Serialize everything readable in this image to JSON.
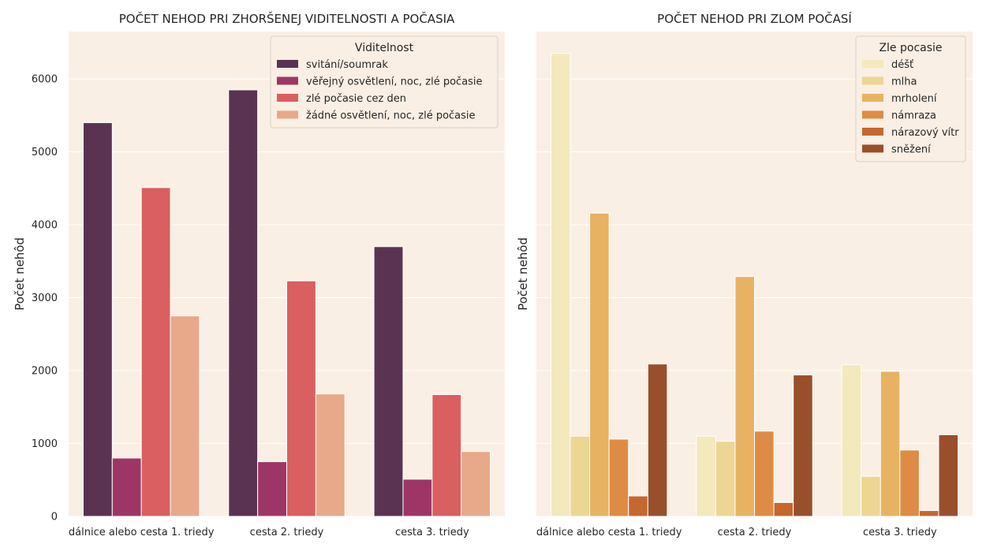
{
  "chart_data": [
    {
      "type": "bar",
      "title": "POČET NEHOD PRI ZHORŠENEJ VIDITELNOSTI A POČASIA",
      "xlabel": "",
      "ylabel": "Počet nehôd",
      "ylim": [
        0,
        6650
      ],
      "yticks": [
        0,
        1000,
        2000,
        3000,
        4000,
        5000,
        6000
      ],
      "grid": true,
      "legend_position": "top-right",
      "legend_title": "Viditelnost",
      "categories": [
        "dálnice alebo cesta 1. triedy",
        "cesta 2. triedy",
        "cesta 3. triedy"
      ],
      "series": [
        {
          "name": "svitání/soumrak",
          "color": "#5a3352",
          "values": [
            5400,
            5850,
            3700
          ]
        },
        {
          "name": "věřejný osvětlení, noc, zlé počasie",
          "color": "#9d3666",
          "values": [
            800,
            750,
            510
          ]
        },
        {
          "name": "zlé počasie cez den",
          "color": "#d95f60",
          "values": [
            4510,
            3230,
            1670
          ]
        },
        {
          "name": "žádné osvětlení, noc, zlé počasie",
          "color": "#e8a98a",
          "values": [
            2750,
            1680,
            890
          ]
        }
      ]
    },
    {
      "type": "bar",
      "title": "POČET NEHOD PRI ZLOM POČASÍ",
      "xlabel": "",
      "ylabel": "Počet nehôd",
      "ylim": [
        0,
        6650
      ],
      "yticks": [
        0,
        1000,
        2000,
        3000,
        4000,
        5000,
        6000
      ],
      "grid": true,
      "legend_position": "top-right",
      "legend_title": "Zle pocasie",
      "categories": [
        "dálnice alebo cesta 1. triedy",
        "cesta 2. triedy",
        "cesta 3. triedy"
      ],
      "series": [
        {
          "name": "déšť",
          "color": "#f3e9bd",
          "values": [
            6350,
            1100,
            2080
          ]
        },
        {
          "name": "mlha",
          "color": "#edd594",
          "values": [
            1100,
            1030,
            550
          ]
        },
        {
          "name": "mrholení",
          "color": "#e8b263",
          "values": [
            4160,
            3290,
            1990
          ]
        },
        {
          "name": "námraza",
          "color": "#de8c45",
          "values": [
            1060,
            1170,
            910
          ]
        },
        {
          "name": "nárazový vítr",
          "color": "#c5672f",
          "values": [
            280,
            190,
            80
          ]
        },
        {
          "name": "sněžení",
          "color": "#994f2b",
          "values": [
            2090,
            1940,
            1120
          ]
        }
      ]
    }
  ]
}
